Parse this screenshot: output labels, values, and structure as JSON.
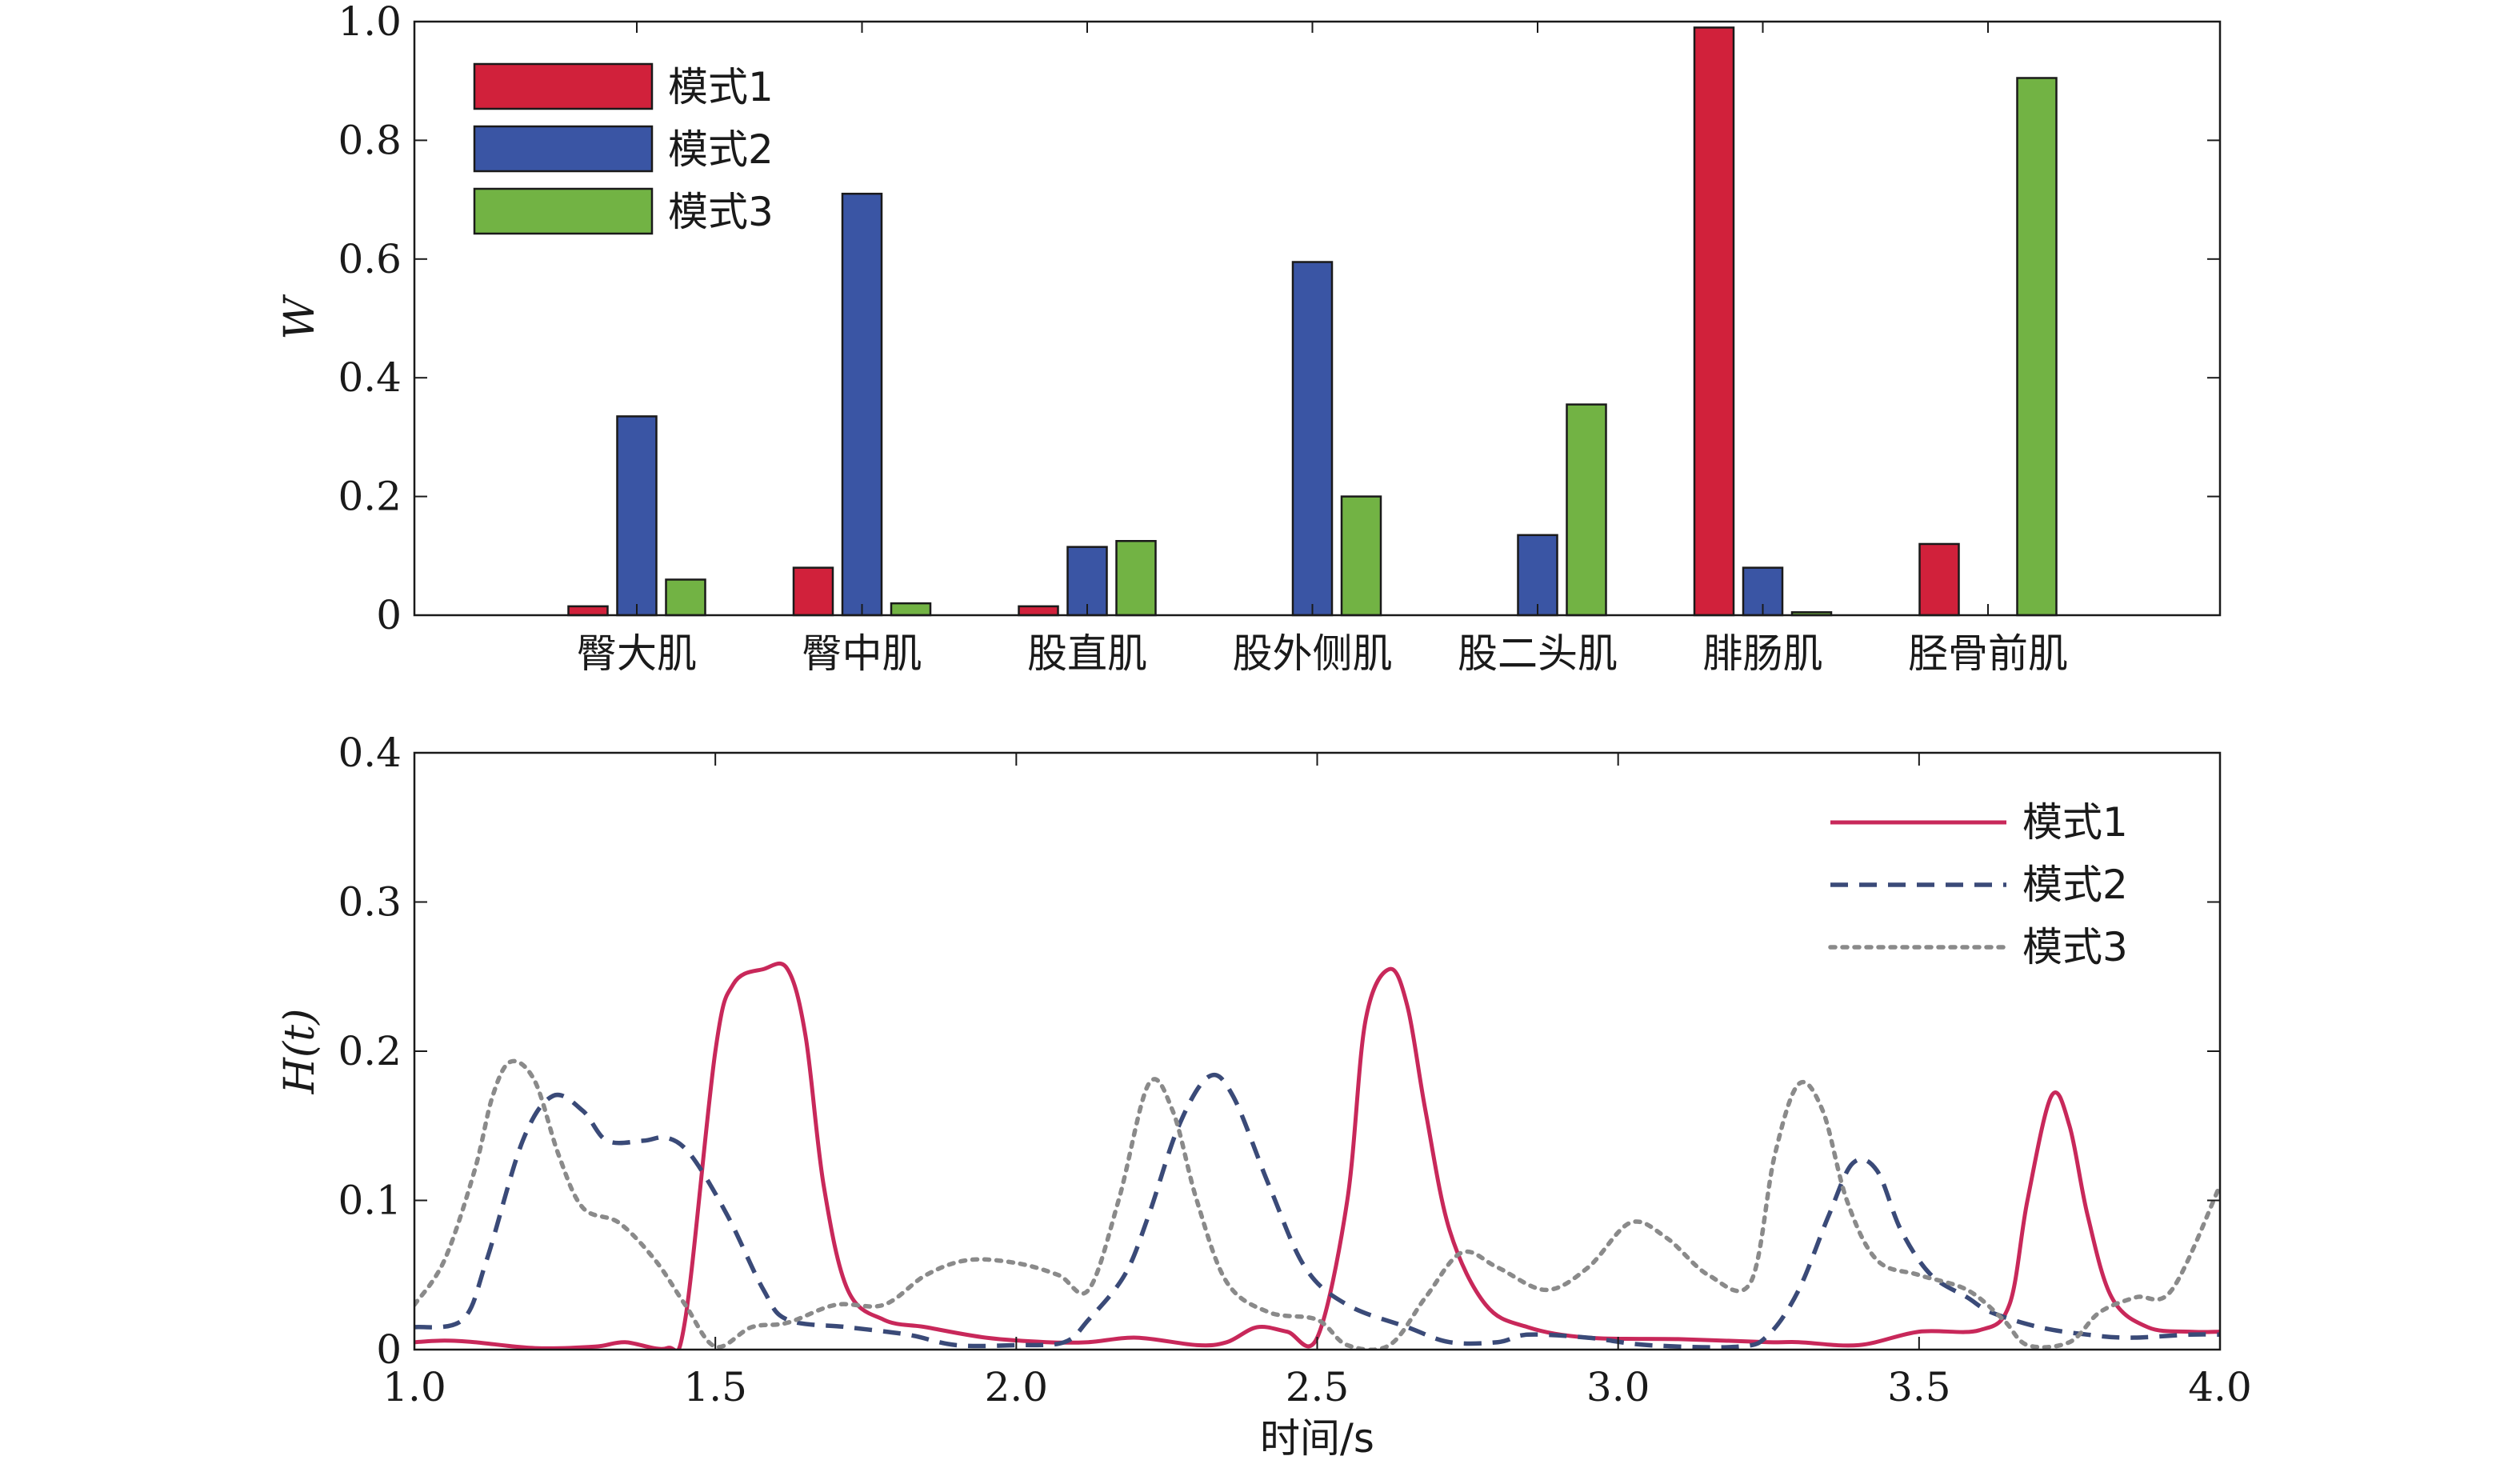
{
  "chart_data": [
    {
      "type": "bar",
      "ylabel": "W",
      "xlabel": "",
      "ylim": [
        0,
        1.0
      ],
      "yticks": [
        0,
        0.2,
        0.4,
        0.6,
        0.8,
        1.0
      ],
      "ytick_labels": [
        "0",
        "0.2",
        "0.4",
        "0.6",
        "0.8",
        "1.0"
      ],
      "categories": [
        "臀大肌",
        "臀中肌",
        "股直肌",
        "股外侧肌",
        "股二头肌",
        "腓肠肌",
        "胫骨前肌"
      ],
      "legend_position": "top-left",
      "series": [
        {
          "name": "模式1",
          "color": "#d1213b",
          "values": [
            0.015,
            0.08,
            0.015,
            0.0,
            0.0,
            0.99,
            0.12
          ]
        },
        {
          "name": "模式2",
          "color": "#3a55a4",
          "values": [
            0.335,
            0.71,
            0.115,
            0.595,
            0.135,
            0.08,
            0.0
          ]
        },
        {
          "name": "模式3",
          "color": "#72b344",
          "values": [
            0.06,
            0.02,
            0.125,
            0.2,
            0.355,
            0.005,
            0.905
          ]
        }
      ]
    },
    {
      "type": "line",
      "ylabel": "H(t)",
      "xlabel": "时间/s",
      "xlim": [
        1.0,
        4.0
      ],
      "ylim": [
        0,
        0.4
      ],
      "xticks": [
        1.0,
        1.5,
        2.0,
        2.5,
        3.0,
        3.5,
        4.0
      ],
      "xtick_labels": [
        "1.0",
        "1.5",
        "2.0",
        "2.5",
        "3.0",
        "3.5",
        "4.0"
      ],
      "yticks": [
        0,
        0.1,
        0.2,
        0.3,
        0.4
      ],
      "ytick_labels": [
        "0",
        "0.1",
        "0.2",
        "0.3",
        "0.4"
      ],
      "legend_position": "top-right",
      "series": [
        {
          "name": "模式1",
          "color": "#c8285a",
          "dash": "solid",
          "points": [
            [
              1.0,
              0.005
            ],
            [
              1.05,
              0.006
            ],
            [
              1.1,
              0.005
            ],
            [
              1.2,
              0.001
            ],
            [
              1.3,
              0.002
            ],
            [
              1.35,
              0.005
            ],
            [
              1.42,
              0.001
            ],
            [
              1.45,
              0.02
            ],
            [
              1.5,
              0.2
            ],
            [
              1.53,
              0.245
            ],
            [
              1.58,
              0.255
            ],
            [
              1.62,
              0.255
            ],
            [
              1.65,
              0.21
            ],
            [
              1.68,
              0.11
            ],
            [
              1.72,
              0.04
            ],
            [
              1.78,
              0.02
            ],
            [
              1.85,
              0.015
            ],
            [
              1.95,
              0.008
            ],
            [
              2.05,
              0.005
            ],
            [
              2.12,
              0.005
            ],
            [
              2.2,
              0.008
            ],
            [
              2.3,
              0.003
            ],
            [
              2.35,
              0.005
            ],
            [
              2.4,
              0.015
            ],
            [
              2.45,
              0.012
            ],
            [
              2.5,
              0.008
            ],
            [
              2.55,
              0.1
            ],
            [
              2.58,
              0.22
            ],
            [
              2.62,
              0.255
            ],
            [
              2.65,
              0.23
            ],
            [
              2.68,
              0.16
            ],
            [
              2.72,
              0.08
            ],
            [
              2.78,
              0.03
            ],
            [
              2.85,
              0.015
            ],
            [
              2.95,
              0.008
            ],
            [
              3.1,
              0.007
            ],
            [
              3.25,
              0.005
            ],
            [
              3.3,
              0.005
            ],
            [
              3.4,
              0.003
            ],
            [
              3.5,
              0.012
            ],
            [
              3.6,
              0.013
            ],
            [
              3.65,
              0.03
            ],
            [
              3.68,
              0.1
            ],
            [
              3.72,
              0.17
            ],
            [
              3.75,
              0.15
            ],
            [
              3.78,
              0.09
            ],
            [
              3.82,
              0.035
            ],
            [
              3.88,
              0.015
            ],
            [
              3.95,
              0.012
            ],
            [
              4.0,
              0.012
            ]
          ]
        },
        {
          "name": "模式2",
          "color": "#3a4a78",
          "dash": "dashed",
          "points": [
            [
              1.0,
              0.015
            ],
            [
              1.08,
              0.02
            ],
            [
              1.12,
              0.06
            ],
            [
              1.18,
              0.14
            ],
            [
              1.23,
              0.17
            ],
            [
              1.28,
              0.16
            ],
            [
              1.32,
              0.14
            ],
            [
              1.38,
              0.14
            ],
            [
              1.42,
              0.142
            ],
            [
              1.46,
              0.13
            ],
            [
              1.52,
              0.09
            ],
            [
              1.58,
              0.04
            ],
            [
              1.62,
              0.02
            ],
            [
              1.72,
              0.015
            ],
            [
              1.82,
              0.01
            ],
            [
              1.9,
              0.003
            ],
            [
              2.0,
              0.003
            ],
            [
              2.08,
              0.005
            ],
            [
              2.12,
              0.02
            ],
            [
              2.18,
              0.05
            ],
            [
              2.22,
              0.09
            ],
            [
              2.27,
              0.15
            ],
            [
              2.32,
              0.183
            ],
            [
              2.36,
              0.17
            ],
            [
              2.42,
              0.11
            ],
            [
              2.48,
              0.055
            ],
            [
              2.55,
              0.03
            ],
            [
              2.65,
              0.015
            ],
            [
              2.72,
              0.005
            ],
            [
              2.8,
              0.005
            ],
            [
              2.85,
              0.01
            ],
            [
              2.95,
              0.008
            ],
            [
              3.05,
              0.003
            ],
            [
              3.2,
              0.002
            ],
            [
              3.25,
              0.01
            ],
            [
              3.3,
              0.04
            ],
            [
              3.35,
              0.09
            ],
            [
              3.39,
              0.125
            ],
            [
              3.43,
              0.12
            ],
            [
              3.47,
              0.08
            ],
            [
              3.52,
              0.05
            ],
            [
              3.58,
              0.035
            ],
            [
              3.62,
              0.025
            ],
            [
              3.7,
              0.015
            ],
            [
              3.78,
              0.01
            ],
            [
              3.85,
              0.008
            ],
            [
              3.95,
              0.01
            ],
            [
              4.0,
              0.01
            ]
          ]
        },
        {
          "name": "模式3",
          "color": "#8a8a8a",
          "dash": "dotted",
          "points": [
            [
              1.0,
              0.03
            ],
            [
              1.05,
              0.06
            ],
            [
              1.1,
              0.12
            ],
            [
              1.13,
              0.17
            ],
            [
              1.16,
              0.193
            ],
            [
              1.2,
              0.18
            ],
            [
              1.24,
              0.13
            ],
            [
              1.28,
              0.095
            ],
            [
              1.34,
              0.085
            ],
            [
              1.4,
              0.06
            ],
            [
              1.45,
              0.03
            ],
            [
              1.5,
              0.002
            ],
            [
              1.56,
              0.015
            ],
            [
              1.62,
              0.018
            ],
            [
              1.7,
              0.03
            ],
            [
              1.78,
              0.03
            ],
            [
              1.85,
              0.05
            ],
            [
              1.92,
              0.06
            ],
            [
              2.0,
              0.058
            ],
            [
              2.07,
              0.05
            ],
            [
              2.12,
              0.04
            ],
            [
              2.17,
              0.1
            ],
            [
              2.22,
              0.178
            ],
            [
              2.26,
              0.16
            ],
            [
              2.3,
              0.1
            ],
            [
              2.35,
              0.045
            ],
            [
              2.42,
              0.025
            ],
            [
              2.5,
              0.02
            ],
            [
              2.55,
              0.003
            ],
            [
              2.62,
              0.003
            ],
            [
              2.68,
              0.035
            ],
            [
              2.74,
              0.065
            ],
            [
              2.8,
              0.055
            ],
            [
              2.88,
              0.04
            ],
            [
              2.95,
              0.055
            ],
            [
              3.02,
              0.085
            ],
            [
              3.08,
              0.075
            ],
            [
              3.15,
              0.05
            ],
            [
              3.22,
              0.045
            ],
            [
              3.26,
              0.13
            ],
            [
              3.3,
              0.178
            ],
            [
              3.34,
              0.16
            ],
            [
              3.38,
              0.1
            ],
            [
              3.43,
              0.06
            ],
            [
              3.5,
              0.05
            ],
            [
              3.58,
              0.04
            ],
            [
              3.64,
              0.02
            ],
            [
              3.68,
              0.003
            ],
            [
              3.75,
              0.005
            ],
            [
              3.8,
              0.025
            ],
            [
              3.86,
              0.035
            ],
            [
              3.92,
              0.04
            ],
            [
              4.0,
              0.11
            ]
          ]
        }
      ]
    }
  ]
}
